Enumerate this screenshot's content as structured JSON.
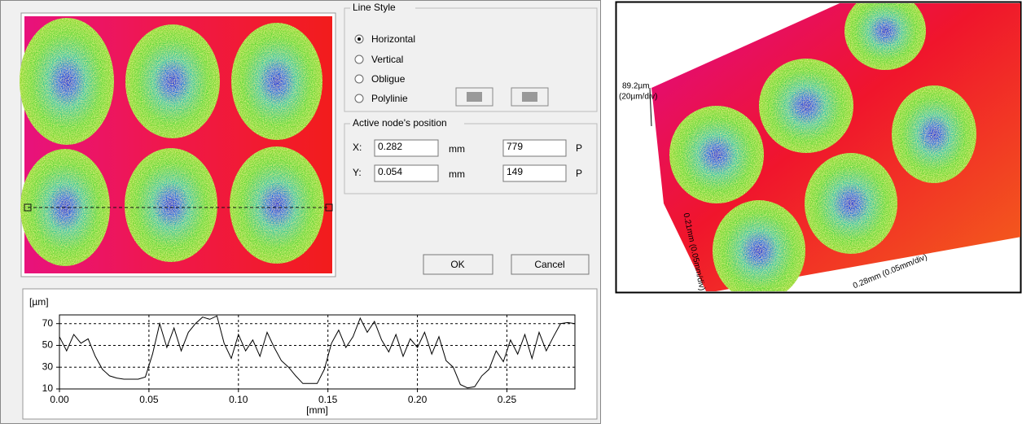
{
  "dialog": {
    "line_style": {
      "title": "Line Style",
      "options": [
        "Horizontal",
        "Vertical",
        "Obligue",
        "Polylinie"
      ]
    },
    "node_position": {
      "title": "Active node's position",
      "rows": [
        {
          "label": "X:",
          "mm_value": "0.282",
          "mm_unit": "mm",
          "p_value": "779",
          "p_unit": "P"
        },
        {
          "label": "Y:",
          "mm_value": "0.054",
          "mm_unit": "mm",
          "p_value": "149",
          "p_unit": "P"
        }
      ]
    },
    "buttons": [
      "OK",
      "Cancel"
    ]
  },
  "view_3d": {
    "z_label": "89.2µm",
    "z_scale": "(20µm/div)",
    "y_axis_label": "0.21mm (0.05mm/div)",
    "x_axis_label": "0.28mm (0.05mm/div)"
  },
  "chart_data": {
    "type": "line",
    "color": "#000000",
    "xlabel": "[mm]",
    "ylabel": "[µm]",
    "grid": true,
    "x": [
      0,
      0.004,
      0.008,
      0.012,
      0.016,
      0.02,
      0.024,
      0.028,
      0.032,
      0.036,
      0.04,
      0.044,
      0.048,
      0.052,
      0.056,
      0.06,
      0.064,
      0.068,
      0.072,
      0.076,
      0.08,
      0.084,
      0.088,
      0.092,
      0.096,
      0.1,
      0.104,
      0.108,
      0.112,
      0.116,
      0.12,
      0.124,
      0.128,
      0.132,
      0.136,
      0.14,
      0.144,
      0.148,
      0.152,
      0.156,
      0.16,
      0.164,
      0.168,
      0.172,
      0.176,
      0.18,
      0.184,
      0.188,
      0.192,
      0.196,
      0.2,
      0.204,
      0.208,
      0.212,
      0.216,
      0.22,
      0.224,
      0.228,
      0.232,
      0.236,
      0.24,
      0.244,
      0.248,
      0.252,
      0.256,
      0.26,
      0.264,
      0.268,
      0.272,
      0.276,
      0.28,
      0.284,
      0.288
    ],
    "values": [
      58,
      45,
      60,
      52,
      56,
      40,
      28,
      22,
      20,
      19,
      19,
      19,
      21,
      42,
      70,
      48,
      66,
      45,
      62,
      70,
      76,
      74,
      77,
      52,
      38,
      60,
      45,
      55,
      40,
      62,
      48,
      36,
      30,
      22,
      15,
      15,
      15,
      28,
      52,
      64,
      48,
      58,
      75,
      62,
      72,
      55,
      44,
      60,
      40,
      56,
      48,
      62,
      42,
      58,
      36,
      30,
      14,
      11,
      12,
      22,
      28,
      45,
      35,
      55,
      42,
      60,
      38,
      62,
      45,
      58,
      70,
      71,
      70
    ],
    "xlim": [
      0,
      0.288
    ],
    "ylim": [
      10,
      78
    ],
    "xticks": [
      {
        "value": 0,
        "label": "0.00"
      },
      {
        "value": 0.05,
        "label": "0.05"
      },
      {
        "value": 0.1,
        "label": "0.10"
      },
      {
        "value": 0.15,
        "label": "0.15"
      },
      {
        "value": 0.2,
        "label": "0.20"
      },
      {
        "value": 0.25,
        "label": "0.25"
      }
    ],
    "yticks": [
      10,
      30,
      50,
      70
    ]
  }
}
